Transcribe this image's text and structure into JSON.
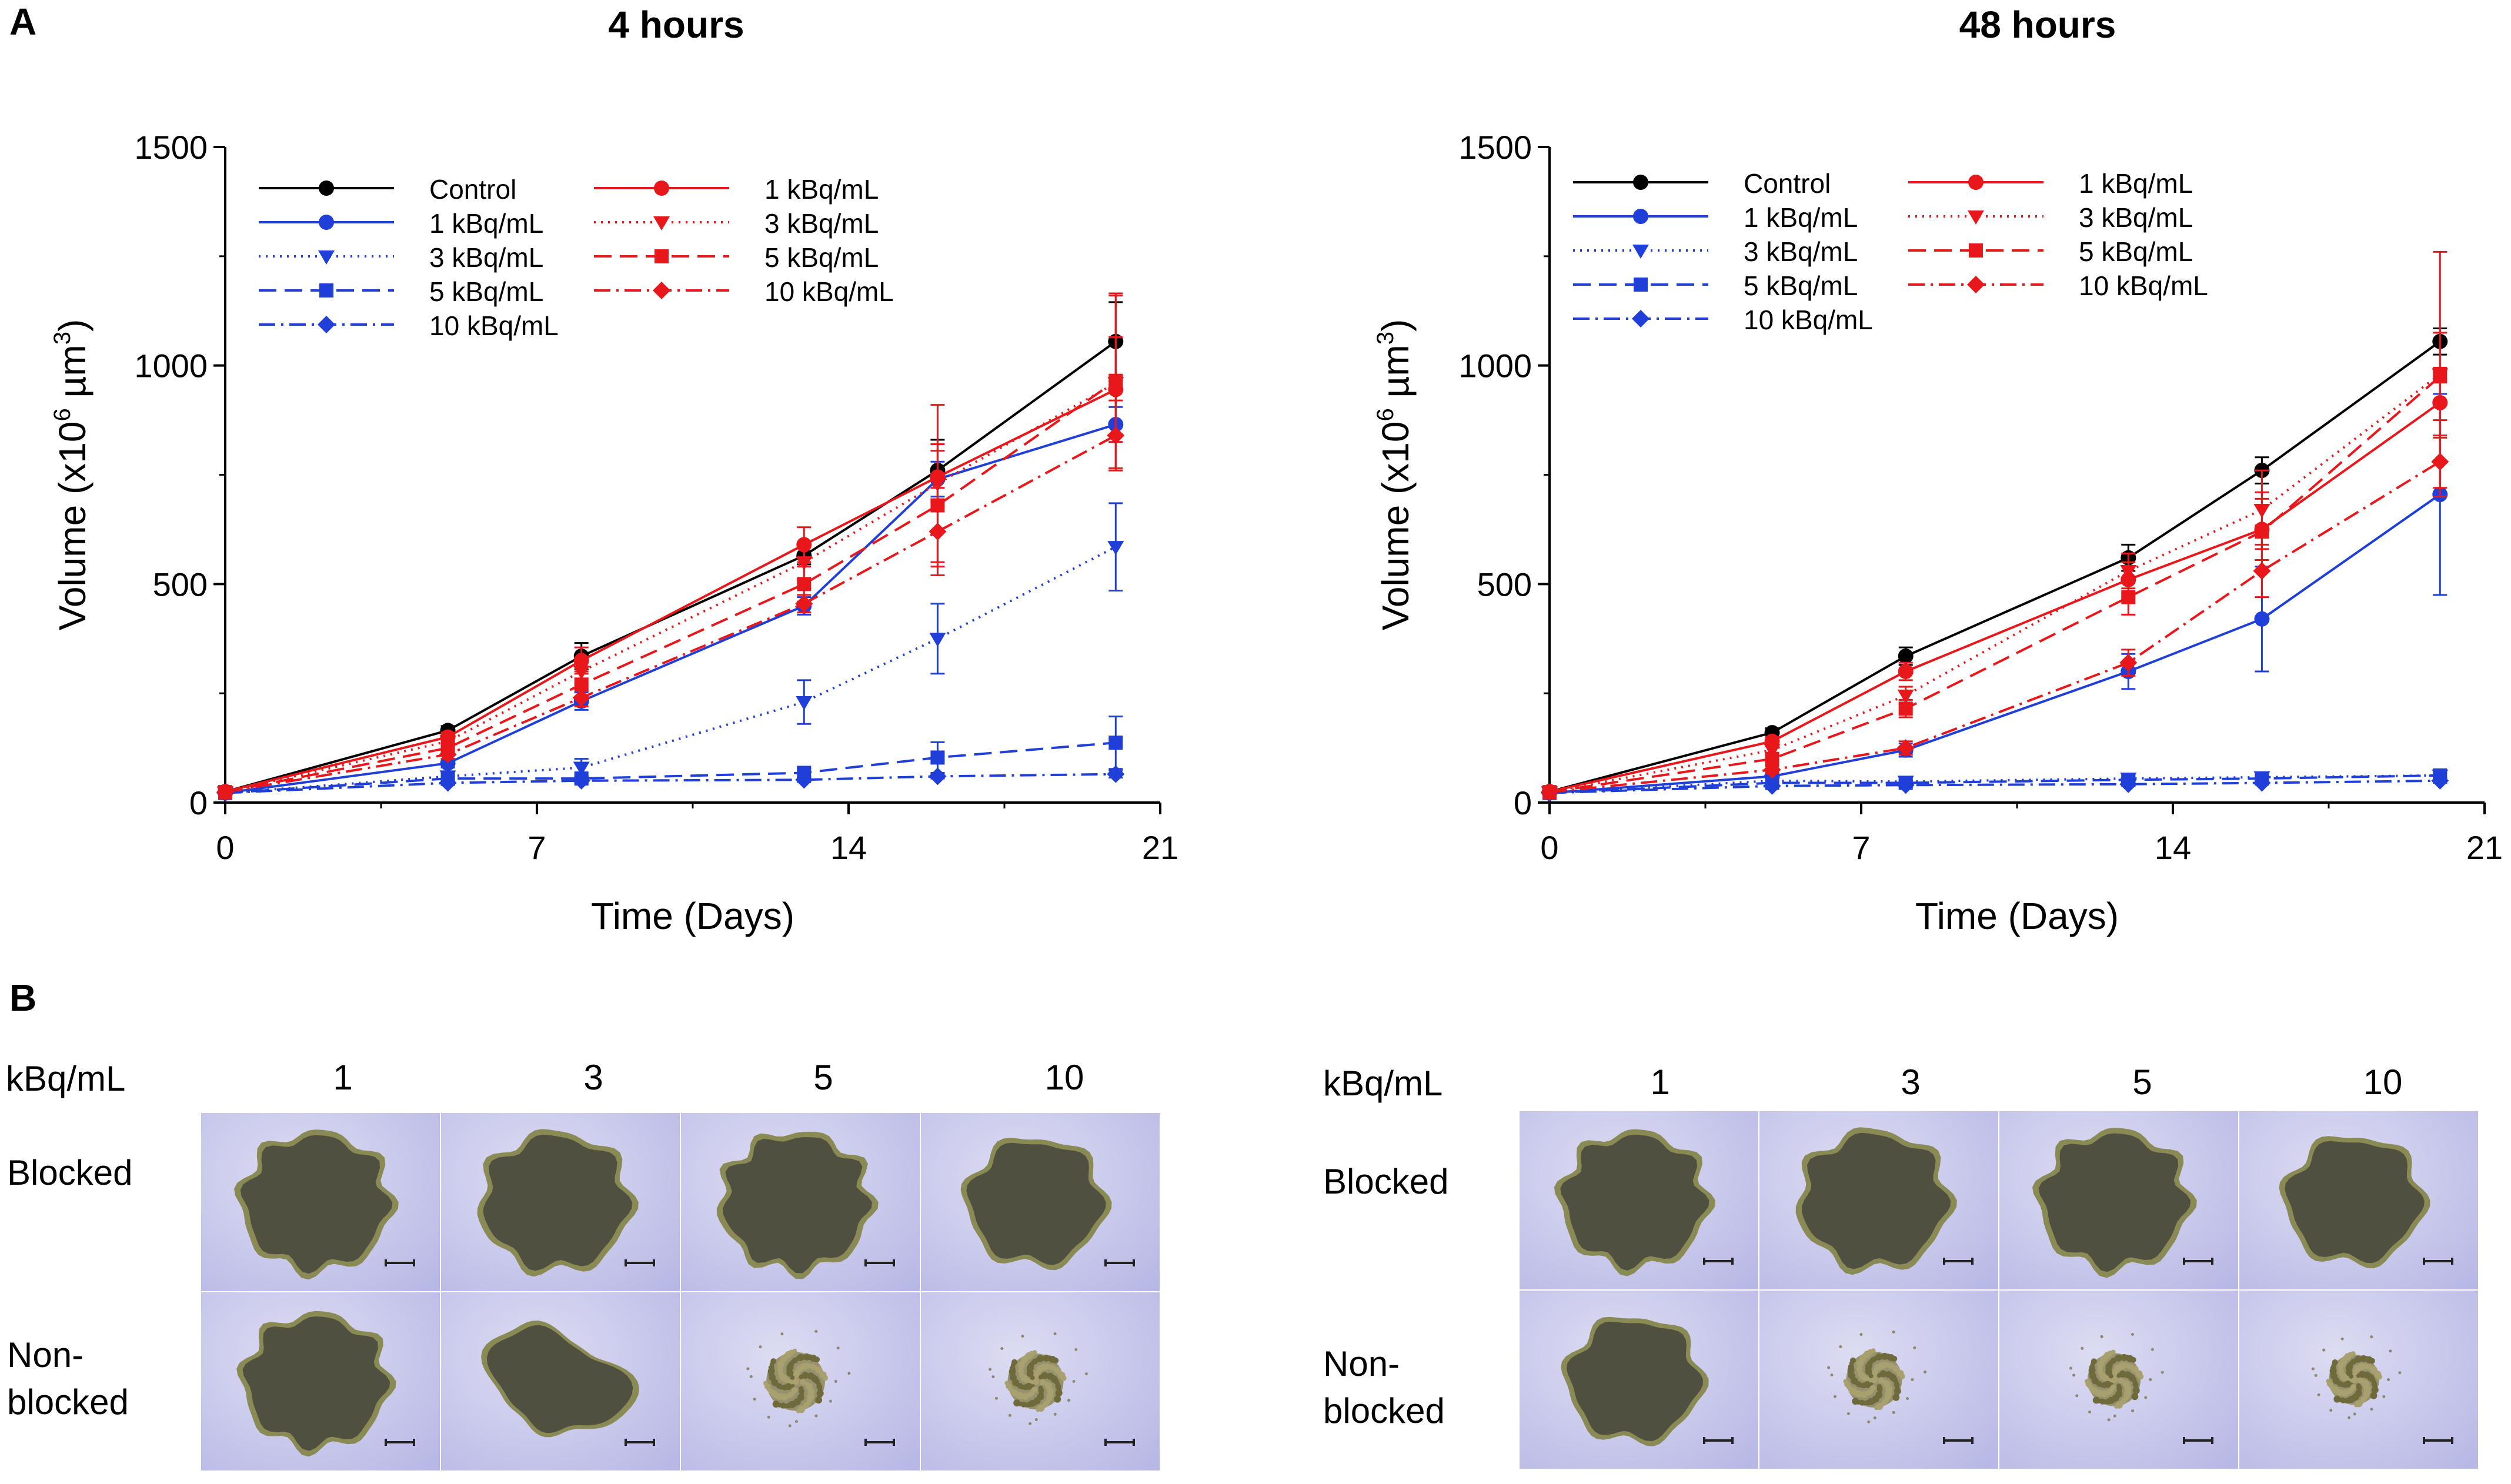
{
  "panel_a_label": "A",
  "panel_b_label": "B",
  "chart_data": [
    {
      "type": "line",
      "title": "4 hours",
      "xlabel": "Time (Days)",
      "ylabel_prefix": "Volume (x10",
      "ylabel_sup1": "6",
      "ylabel_mid": " µm",
      "ylabel_sup2": "3",
      "ylabel_suffix": ")",
      "xlim": [
        0,
        21
      ],
      "ylim": [
        0,
        1500
      ],
      "xticks": [
        "0",
        "7",
        "14",
        "21"
      ],
      "yticks": [
        "0",
        "500",
        "1000",
        "1500"
      ],
      "x": [
        0,
        5,
        8,
        13,
        16,
        20
      ],
      "series": [
        {
          "name": "Control",
          "color": "#000000",
          "dash": "solid",
          "marker": "circle",
          "values": [
            25,
            165,
            335,
            565,
            760,
            1055
          ],
          "errors": [
            5,
            10,
            30,
            20,
            70,
            90
          ]
        },
        {
          "name": "1 kBq/mL",
          "color": "#1f3fd8",
          "dash": "solid",
          "marker": "circle",
          "values": [
            22,
            90,
            232,
            450,
            740,
            865
          ],
          "errors": [
            5,
            10,
            20,
            20,
            40,
            40
          ]
        },
        {
          "name": "3 kBq/mL",
          "color": "#1f3fd8",
          "dash": "dotted",
          "marker": "triangle",
          "values": [
            22,
            60,
            80,
            230,
            375,
            585
          ],
          "errors": [
            5,
            8,
            20,
            50,
            80,
            100
          ]
        },
        {
          "name": "5 kBq/mL",
          "color": "#1f3fd8",
          "dash": "dashed",
          "marker": "square",
          "values": [
            22,
            55,
            55,
            68,
            103,
            137
          ],
          "errors": [
            3,
            5,
            5,
            10,
            35,
            60
          ]
        },
        {
          "name": "10 kBq/mL",
          "color": "#1f3fd8",
          "dash": "dashdot",
          "marker": "diamond",
          "values": [
            22,
            45,
            50,
            52,
            60,
            65
          ],
          "errors": [
            3,
            5,
            5,
            5,
            5,
            8
          ]
        },
        {
          "name": "1 kBq/mL",
          "color": "#e8171b",
          "dash": "solid",
          "marker": "circle",
          "values": [
            25,
            150,
            325,
            590,
            745,
            945
          ],
          "errors": [
            5,
            10,
            30,
            40,
            60,
            120
          ]
        },
        {
          "name": "3 kBq/mL",
          "color": "#e8171b",
          "dash": "dotted",
          "marker": "triangle",
          "values": [
            24,
            140,
            300,
            550,
            730,
            960
          ],
          "errors": [
            5,
            10,
            30,
            40,
            180,
            200
          ]
        },
        {
          "name": "5 kBq/mL",
          "color": "#e8171b",
          "dash": "dashed",
          "marker": "square",
          "values": [
            24,
            125,
            270,
            500,
            680,
            965
          ],
          "errors": [
            5,
            10,
            30,
            40,
            140,
            200
          ]
        },
        {
          "name": "10 kBq/mL",
          "color": "#e8171b",
          "dash": "dashdot",
          "marker": "diamond",
          "values": [
            24,
            110,
            240,
            455,
            620,
            840
          ],
          "errors": [
            5,
            10,
            20,
            20,
            100,
            80
          ]
        }
      ]
    },
    {
      "type": "line",
      "title": "48 hours",
      "xlabel": "Time (Days)",
      "ylabel_prefix": "Volume (x10",
      "ylabel_sup1": "6",
      "ylabel_mid": " µm",
      "ylabel_sup2": "3",
      "ylabel_suffix": ")",
      "xlim": [
        0,
        21
      ],
      "ylim": [
        0,
        1500
      ],
      "xticks": [
        "0",
        "7",
        "14",
        "21"
      ],
      "yticks": [
        "0",
        "500",
        "1000",
        "1500"
      ],
      "x": [
        0,
        5,
        8,
        13,
        16,
        20
      ],
      "series": [
        {
          "name": "Control",
          "color": "#000000",
          "dash": "solid",
          "marker": "circle",
          "values": [
            25,
            160,
            335,
            560,
            760,
            1055
          ],
          "errors": [
            5,
            10,
            20,
            30,
            30,
            30
          ]
        },
        {
          "name": "1 kBq/mL",
          "color": "#1f3fd8",
          "dash": "solid",
          "marker": "circle",
          "values": [
            22,
            60,
            120,
            300,
            420,
            705
          ],
          "errors": [
            3,
            8,
            15,
            40,
            120,
            230
          ]
        },
        {
          "name": "3 kBq/mL",
          "color": "#1f3fd8",
          "dash": "dotted",
          "marker": "triangle",
          "values": [
            22,
            50,
            48,
            55,
            58,
            62
          ],
          "errors": [
            3,
            5,
            5,
            5,
            5,
            5
          ]
        },
        {
          "name": "5 kBq/mL",
          "color": "#1f3fd8",
          "dash": "dashed",
          "marker": "square",
          "values": [
            22,
            45,
            45,
            52,
            55,
            62
          ],
          "errors": [
            3,
            5,
            5,
            5,
            5,
            5
          ]
        },
        {
          "name": "10 kBq/mL",
          "color": "#1f3fd8",
          "dash": "dashdot",
          "marker": "diamond",
          "values": [
            22,
            38,
            40,
            42,
            45,
            50
          ],
          "errors": [
            3,
            4,
            4,
            4,
            4,
            5
          ]
        },
        {
          "name": "1 kBq/mL",
          "color": "#e8171b",
          "dash": "solid",
          "marker": "circle",
          "values": [
            25,
            140,
            300,
            510,
            625,
            915
          ],
          "errors": [
            5,
            10,
            20,
            40,
            70,
            80
          ]
        },
        {
          "name": "3 kBq/mL",
          "color": "#e8171b",
          "dash": "dotted",
          "marker": "triangle",
          "values": [
            24,
            120,
            245,
            530,
            670,
            980
          ],
          "errors": [
            5,
            10,
            20,
            40,
            90,
            280
          ]
        },
        {
          "name": "5 kBq/mL",
          "color": "#e8171b",
          "dash": "dashed",
          "marker": "square",
          "values": [
            24,
            100,
            215,
            470,
            620,
            975
          ],
          "errors": [
            5,
            10,
            20,
            40,
            90,
            100
          ]
        },
        {
          "name": "10 kBq/mL",
          "color": "#e8171b",
          "dash": "dashdot",
          "marker": "diamond",
          "values": [
            24,
            75,
            125,
            320,
            530,
            780
          ],
          "errors": [
            5,
            8,
            15,
            30,
            60,
            60
          ]
        }
      ]
    }
  ],
  "panel_b": [
    {
      "unit_label": "kBq/mL",
      "columns": [
        "1",
        "3",
        "5",
        "10"
      ],
      "row_labels": [
        "Blocked",
        "Non-",
        "blocked"
      ]
    },
    {
      "unit_label": "kBq/mL",
      "columns": [
        "1",
        "3",
        "5",
        "10"
      ],
      "row_labels": [
        "Blocked",
        "Non-",
        "blocked"
      ]
    }
  ],
  "photos": [
    {
      "blocked": [
        {
          "size": 1.0,
          "lobes": 8
        },
        {
          "size": 1.0,
          "lobes": 7
        },
        {
          "size": 1.0,
          "lobes": 9
        },
        {
          "size": 0.92,
          "lobes": 6
        }
      ],
      "nonblocked": [
        {
          "size": 0.97,
          "lobes": 8
        },
        {
          "size": 0.82,
          "lobes": 4,
          "irregular": true
        },
        {
          "size": 0.42,
          "grainy": true
        },
        {
          "size": 0.4,
          "grainy": true
        }
      ]
    },
    {
      "blocked": [
        {
          "size": 0.98,
          "lobes": 8
        },
        {
          "size": 1.0,
          "lobes": 7
        },
        {
          "size": 1.0,
          "lobes": 8
        },
        {
          "size": 0.92,
          "lobes": 6
        }
      ],
      "nonblocked": [
        {
          "size": 0.9,
          "lobes": 6
        },
        {
          "size": 0.4,
          "grainy": true
        },
        {
          "size": 0.38,
          "grainy": true
        },
        {
          "size": 0.36,
          "grainy": true
        }
      ]
    }
  ]
}
